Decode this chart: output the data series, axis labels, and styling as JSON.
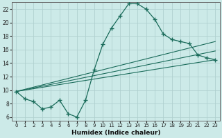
{
  "xlabel": "Humidex (Indice chaleur)",
  "bg_color": "#cceae8",
  "grid_color": "#b0d0cf",
  "line_color": "#1a6b5a",
  "xlim": [
    -0.5,
    23.5
  ],
  "ylim": [
    5.5,
    23.0
  ],
  "xticks": [
    0,
    1,
    2,
    3,
    4,
    5,
    6,
    7,
    8,
    9,
    10,
    11,
    12,
    13,
    14,
    15,
    16,
    17,
    18,
    19,
    20,
    21,
    22,
    23
  ],
  "yticks": [
    6,
    8,
    10,
    12,
    14,
    16,
    18,
    20,
    22
  ],
  "curve1_x": [
    0,
    1,
    2,
    3,
    4,
    5,
    6,
    7,
    8,
    9,
    10,
    11,
    12,
    13,
    14,
    15,
    16,
    17,
    18,
    19,
    20,
    21,
    22,
    23
  ],
  "curve1_y": [
    9.8,
    8.7,
    8.3,
    7.2,
    7.5,
    8.5,
    6.5,
    6.0,
    8.5,
    13.0,
    16.8,
    19.2,
    21.0,
    22.8,
    22.8,
    22.0,
    20.5,
    18.3,
    17.5,
    17.2,
    16.9,
    15.2,
    14.8,
    14.5
  ],
  "line1_x": [
    0,
    23
  ],
  "line1_y": [
    9.8,
    17.2
  ],
  "line2_x": [
    0,
    23
  ],
  "line2_y": [
    9.8,
    15.8
  ],
  "line3_x": [
    0,
    23
  ],
  "line3_y": [
    9.8,
    14.5
  ]
}
